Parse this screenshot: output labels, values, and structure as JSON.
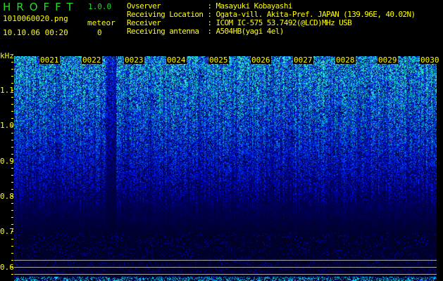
{
  "header": {
    "app_title": "HROFFT",
    "version": "1.0.0",
    "filename": "1010060020.png",
    "datetime": "10.10.06 00:20",
    "meteor_label": "meteor",
    "meteor_count": "0"
  },
  "info": {
    "observer": "Ovserver           : Masayuki Kobayashi",
    "location": "Receiving Location : Ogata-vill. Akita-Pref. JAPAN (139.96E, 40.02N)",
    "receiver": "Receiver           : ICOM IC-575 53.7492(@LCD)MHz USB",
    "antenna": "Receiving antenna  : A504HB(yagi 4el)"
  },
  "spectrogram": {
    "y_unit": "kHz",
    "y_labels": [
      "1.1",
      "1.0",
      "0.9",
      "0.8",
      "0.7",
      "0.6"
    ],
    "minute_labels": [
      "0021",
      "0022",
      "0023",
      "0024",
      "0025",
      "0026",
      "0027",
      "0028",
      "0029",
      "0030"
    ],
    "colors": {
      "low": "#000033",
      "mid": "#0033cc",
      "high": "#33ff66",
      "baseline": "#00ffff",
      "reference_lines": "#aaaaaa"
    }
  }
}
